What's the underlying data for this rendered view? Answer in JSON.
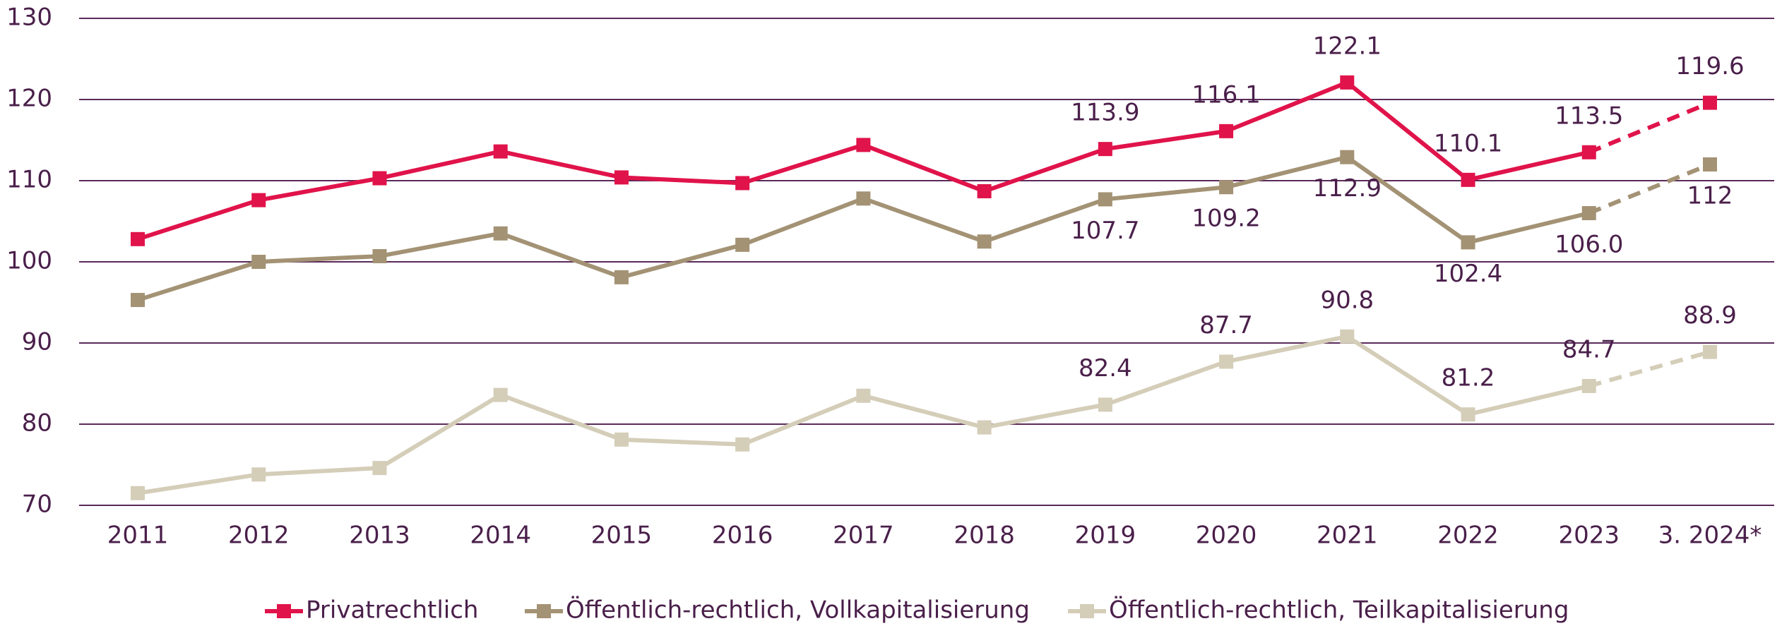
{
  "chart_data": {
    "type": "line",
    "categories": [
      "2011",
      "2012",
      "2013",
      "2014",
      "2015",
      "2016",
      "2017",
      "2018",
      "2019",
      "2020",
      "2021",
      "2022",
      "2023",
      "3. 2024*"
    ],
    "series": [
      {
        "name": "Privatrechtlich",
        "color": "#e0134a",
        "values": [
          102.8,
          107.6,
          110.3,
          113.6,
          110.4,
          109.7,
          114.4,
          108.7,
          113.9,
          116.1,
          122.1,
          110.1,
          113.5,
          119.6
        ],
        "value_labels": [
          null,
          null,
          null,
          null,
          null,
          null,
          null,
          null,
          "113.9",
          "116.1",
          "122.1",
          "110.1",
          "113.5",
          "119.6"
        ]
      },
      {
        "name": "Öffentlich-rechtlich, Vollkapitalisierung",
        "color": "#a39274",
        "values": [
          95.3,
          100.0,
          100.7,
          103.5,
          98.1,
          102.1,
          107.8,
          102.5,
          107.7,
          109.2,
          112.9,
          102.4,
          106.0,
          112
        ],
        "value_labels": [
          null,
          null,
          null,
          null,
          null,
          null,
          null,
          null,
          "107.7",
          "109.2",
          "112.9",
          "102.4",
          "106.0",
          "112"
        ]
      },
      {
        "name": "Öffentlich-rechtlich, Teilkapitalisierung",
        "color": "#d4cdb8",
        "values": [
          71.5,
          73.8,
          74.6,
          83.6,
          78.1,
          77.5,
          83.5,
          79.6,
          82.4,
          87.7,
          90.8,
          81.2,
          84.7,
          88.9
        ],
        "value_labels": [
          null,
          null,
          null,
          null,
          null,
          null,
          null,
          null,
          "82.4",
          "87.7",
          "90.8",
          "81.2",
          "84.7",
          "88.9"
        ]
      }
    ],
    "ylim": [
      70,
      130
    ],
    "yticks": [
      70,
      80,
      90,
      100,
      110,
      120,
      130
    ],
    "grid": true,
    "dashed_last_segment": true,
    "legend": "bottom"
  }
}
